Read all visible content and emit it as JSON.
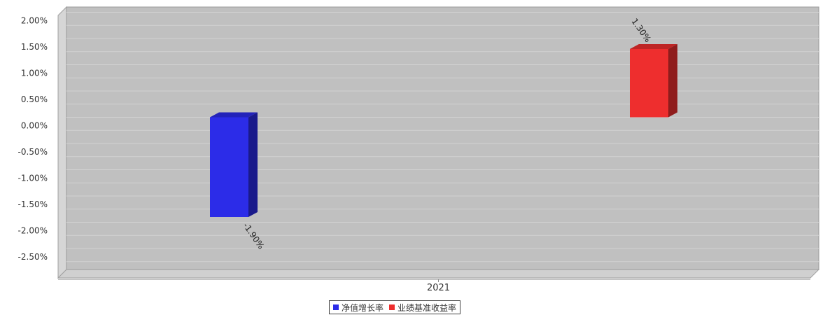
{
  "chart_data": {
    "type": "bar",
    "categories": [
      "2021"
    ],
    "series": [
      {
        "name": "净值增长率",
        "values": [
          -1.9
        ],
        "label": "-1.90%",
        "color": "#2c2ce8"
      },
      {
        "name": "业绩基准收益率",
        "values": [
          1.3
        ],
        "label": "1.30%",
        "color": "#ee2e2e"
      }
    ],
    "ylim": [
      -2.9,
      2.1
    ],
    "yticks": [
      2.0,
      1.5,
      1.0,
      0.5,
      0.0,
      -0.5,
      -1.0,
      -1.5,
      -2.0,
      -2.5
    ],
    "ytick_labels": [
      "2.00%",
      "1.50%",
      "1.00%",
      "0.50%",
      "0.00%",
      "-0.50%",
      "-1.00%",
      "-1.50%",
      "-2.00%",
      "-2.50%"
    ],
    "grid": true,
    "legend_position": "bottom-center",
    "plot_background": "#c0c0c0"
  }
}
